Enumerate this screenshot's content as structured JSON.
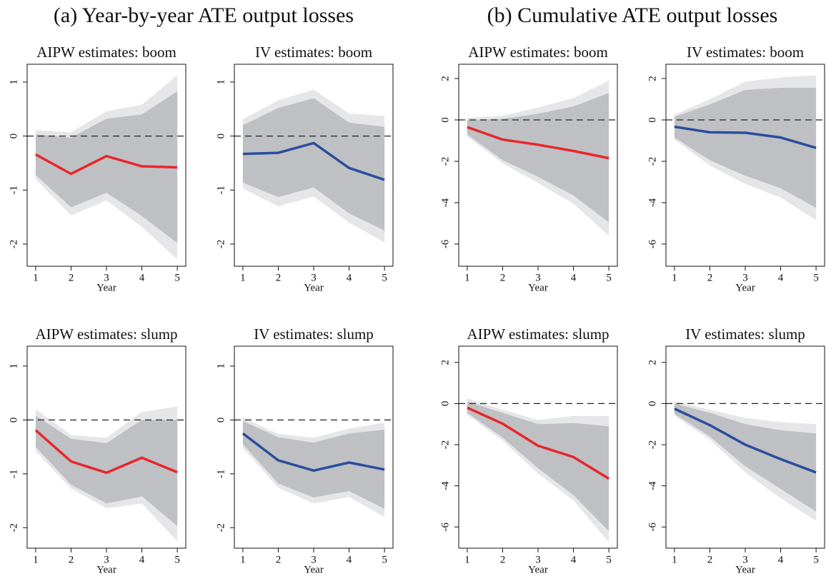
{
  "headings": [
    "(a) Year-by-year ATE output losses",
    "(b) Cumulative ATE output losses"
  ],
  "chart_data": [
    {
      "type": "line",
      "title": "AIPW estimates: boom",
      "xlabel": "Year",
      "x": [
        1,
        2,
        3,
        4,
        5
      ],
      "xlim": [
        0.76,
        5.24
      ],
      "xticks": [
        1,
        2,
        3,
        4,
        5
      ],
      "ylim": [
        -2.41,
        1.33
      ],
      "yticks": [
        1,
        0,
        -1,
        -2
      ],
      "reference_line": 0,
      "bands": [
        {
          "color": "#e6e6e8",
          "upper": [
            0.11,
            0.07,
            0.46,
            0.58,
            1.13
          ],
          "lower": [
            -0.8,
            -1.47,
            -1.19,
            -1.68,
            -2.28
          ]
        },
        {
          "color": "#bfc0c4",
          "upper": [
            0.03,
            -0.03,
            0.32,
            0.4,
            0.83
          ],
          "lower": [
            -0.72,
            -1.32,
            -1.05,
            -1.48,
            -1.98
          ]
        }
      ],
      "series": [
        {
          "color": "#e8262a",
          "values": [
            -0.34,
            -0.7,
            -0.37,
            -0.56,
            -0.58
          ]
        }
      ]
    },
    {
      "type": "line",
      "title": "IV estimates: boom",
      "xlabel": "Year",
      "x": [
        1,
        2,
        3,
        4,
        5
      ],
      "xlim": [
        0.76,
        5.24
      ],
      "xticks": [
        1,
        2,
        3,
        4,
        5
      ],
      "ylim": [
        -2.41,
        1.33
      ],
      "yticks": [
        1,
        0,
        -1,
        -2
      ],
      "reference_line": 0,
      "bands": [
        {
          "color": "#e6e6e8",
          "upper": [
            0.31,
            0.66,
            0.86,
            0.42,
            0.37
          ],
          "lower": [
            -0.97,
            -1.3,
            -1.12,
            -1.6,
            -1.97
          ]
        },
        {
          "color": "#bfc0c4",
          "upper": [
            0.2,
            0.52,
            0.7,
            0.25,
            0.17
          ],
          "lower": [
            -0.86,
            -1.13,
            -0.95,
            -1.43,
            -1.75
          ]
        }
      ],
      "series": [
        {
          "color": "#2a4d9c",
          "values": [
            -0.33,
            -0.31,
            -0.13,
            -0.59,
            -0.81
          ]
        }
      ]
    },
    {
      "type": "line",
      "title": "AIPW estimates: boom",
      "xlabel": "Year",
      "x": [
        1,
        2,
        3,
        4,
        5
      ],
      "xlim": [
        0.76,
        5.24
      ],
      "xticks": [
        1,
        2,
        3,
        4,
        5
      ],
      "ylim": [
        -7.07,
        2.69
      ],
      "yticks": [
        2,
        0,
        -2,
        -4,
        -6
      ],
      "reference_line": 0,
      "bands": [
        {
          "color": "#e6e6e8",
          "upper": [
            0.1,
            0.2,
            0.6,
            1.05,
            1.9
          ],
          "lower": [
            -0.8,
            -2.1,
            -3.05,
            -4.05,
            -5.6
          ]
        },
        {
          "color": "#bfc0c4",
          "upper": [
            0.0,
            0.05,
            0.3,
            0.65,
            1.3
          ],
          "lower": [
            -0.7,
            -1.95,
            -2.75,
            -3.65,
            -4.95
          ]
        }
      ],
      "series": [
        {
          "color": "#e8262a",
          "values": [
            -0.35,
            -0.95,
            -1.2,
            -1.5,
            -1.85
          ]
        }
      ]
    },
    {
      "type": "line",
      "title": "IV estimates: boom",
      "xlabel": "Year",
      "x": [
        1,
        2,
        3,
        4,
        5
      ],
      "xlim": [
        0.76,
        5.24
      ],
      "xticks": [
        1,
        2,
        3,
        4,
        5
      ],
      "ylim": [
        -7.07,
        2.69
      ],
      "yticks": [
        2,
        0,
        -2,
        -4,
        -6
      ],
      "reference_line": 0,
      "bands": [
        {
          "color": "#e6e6e8",
          "upper": [
            0.25,
            1.0,
            1.85,
            2.05,
            2.15
          ],
          "lower": [
            -0.95,
            -2.2,
            -3.1,
            -3.75,
            -4.85
          ]
        },
        {
          "color": "#bfc0c4",
          "upper": [
            0.15,
            0.75,
            1.45,
            1.55,
            1.55
          ],
          "lower": [
            -0.85,
            -1.95,
            -2.7,
            -3.3,
            -4.25
          ]
        }
      ],
      "series": [
        {
          "color": "#2a4d9c",
          "values": [
            -0.33,
            -0.6,
            -0.62,
            -0.85,
            -1.35
          ]
        }
      ]
    },
    {
      "type": "line",
      "title": "AIPW estimates: slump",
      "xlabel": "Year",
      "x": [
        1,
        2,
        3,
        4,
        5
      ],
      "xlim": [
        0.76,
        5.24
      ],
      "xticks": [
        1,
        2,
        3,
        4,
        5
      ],
      "ylim": [
        -2.38,
        1.37
      ],
      "yticks": [
        1,
        0,
        -1,
        -2
      ],
      "reference_line": 0,
      "bands": [
        {
          "color": "#e6e6e8",
          "upper": [
            0.2,
            -0.28,
            -0.33,
            0.15,
            0.25
          ],
          "lower": [
            -0.58,
            -1.27,
            -1.64,
            -1.55,
            -2.25
          ]
        },
        {
          "color": "#bfc0c4",
          "upper": [
            0.08,
            -0.35,
            -0.43,
            0.0,
            0.0
          ],
          "lower": [
            -0.5,
            -1.2,
            -1.55,
            -1.42,
            -1.97
          ]
        }
      ],
      "series": [
        {
          "color": "#e8262a",
          "values": [
            -0.19,
            -0.77,
            -0.98,
            -0.7,
            -0.97
          ]
        }
      ]
    },
    {
      "type": "line",
      "title": "IV estimates: slump",
      "xlabel": "Year",
      "x": [
        1,
        2,
        3,
        4,
        5
      ],
      "xlim": [
        0.76,
        5.24
      ],
      "xticks": [
        1,
        2,
        3,
        4,
        5
      ],
      "ylim": [
        -2.38,
        1.37
      ],
      "yticks": [
        1,
        0,
        -1,
        -2
      ],
      "reference_line": 0,
      "bands": [
        {
          "color": "#e6e6e8",
          "upper": [
            0.05,
            -0.26,
            -0.33,
            -0.16,
            -0.05
          ],
          "lower": [
            -0.52,
            -1.26,
            -1.55,
            -1.43,
            -1.8
          ]
        },
        {
          "color": "#bfc0c4",
          "upper": [
            -0.02,
            -0.32,
            -0.42,
            -0.25,
            -0.18
          ],
          "lower": [
            -0.45,
            -1.18,
            -1.44,
            -1.32,
            -1.65
          ]
        }
      ],
      "series": [
        {
          "color": "#2a4d9c",
          "values": [
            -0.25,
            -0.75,
            -0.94,
            -0.79,
            -0.92
          ]
        }
      ]
    },
    {
      "type": "line",
      "title": "AIPW estimates: slump",
      "xlabel": "Year",
      "x": [
        1,
        2,
        3,
        4,
        5
      ],
      "xlim": [
        0.76,
        5.24
      ],
      "xticks": [
        1,
        2,
        3,
        4,
        5
      ],
      "ylim": [
        -7.03,
        2.79
      ],
      "yticks": [
        2,
        0,
        -2,
        -4,
        -6
      ],
      "reference_line": 0,
      "bands": [
        {
          "color": "#e6e6e8",
          "upper": [
            0.25,
            -0.3,
            -0.8,
            -0.6,
            -0.6
          ],
          "lower": [
            -0.55,
            -1.8,
            -3.4,
            -4.7,
            -6.75
          ]
        },
        {
          "color": "#bfc0c4",
          "upper": [
            0.1,
            -0.45,
            -1.0,
            -0.95,
            -1.1
          ],
          "lower": [
            -0.45,
            -1.65,
            -3.15,
            -4.45,
            -6.2
          ]
        }
      ],
      "series": [
        {
          "color": "#e8262a",
          "values": [
            -0.2,
            -0.98,
            -2.05,
            -2.6,
            -3.65
          ]
        }
      ]
    },
    {
      "type": "line",
      "title": "IV estimates: slump",
      "xlabel": "Year",
      "x": [
        1,
        2,
        3,
        4,
        5
      ],
      "xlim": [
        0.76,
        5.24
      ],
      "xticks": [
        1,
        2,
        3,
        4,
        5
      ],
      "ylim": [
        -7.03,
        2.79
      ],
      "yticks": [
        2,
        0,
        -2,
        -4,
        -6
      ],
      "reference_line": 0,
      "bands": [
        {
          "color": "#e6e6e8",
          "upper": [
            0.1,
            -0.3,
            -0.7,
            -0.9,
            -1.0
          ],
          "lower": [
            -0.6,
            -1.75,
            -3.35,
            -4.6,
            -5.7
          ]
        },
        {
          "color": "#bfc0c4",
          "upper": [
            0.0,
            -0.45,
            -1.0,
            -1.3,
            -1.45
          ],
          "lower": [
            -0.5,
            -1.6,
            -3.05,
            -4.15,
            -5.25
          ]
        }
      ],
      "series": [
        {
          "color": "#2a4d9c",
          "values": [
            -0.25,
            -1.05,
            -2.0,
            -2.7,
            -3.35
          ]
        }
      ]
    }
  ]
}
